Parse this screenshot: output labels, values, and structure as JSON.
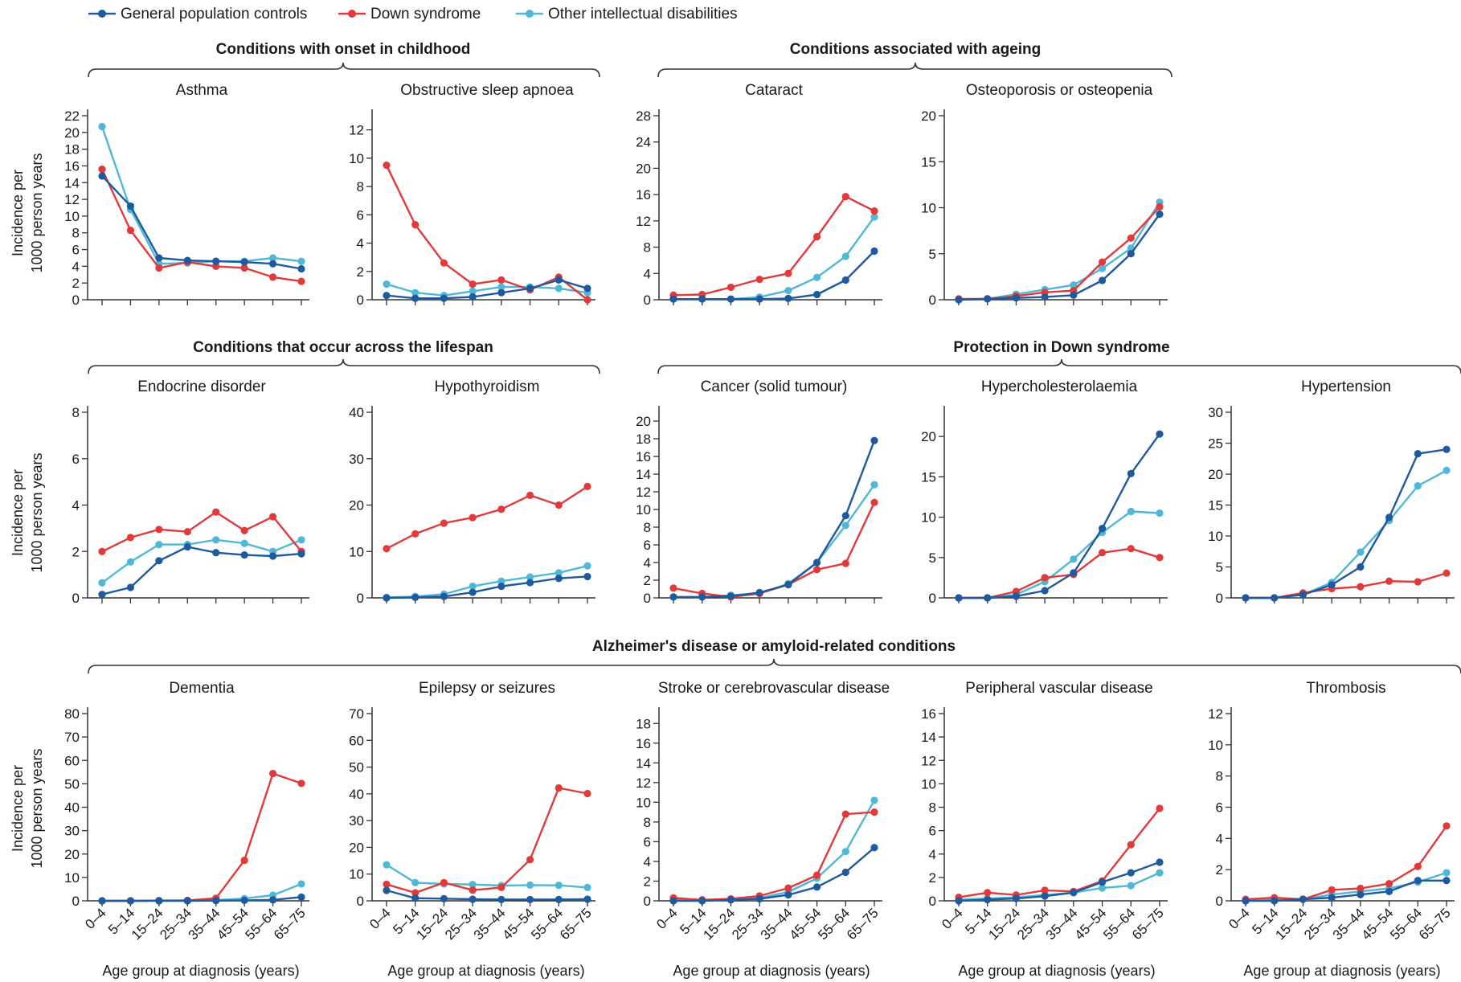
{
  "legend": [
    {
      "label": "General population controls",
      "color": "#1f5a9e"
    },
    {
      "label": "Down syndrome",
      "color": "#e2393a"
    },
    {
      "label": "Other intellectual disabilities",
      "color": "#4fb8d6"
    }
  ],
  "groups": [
    {
      "title": "Conditions with onset in childhood"
    },
    {
      "title": "Conditions associated with ageing"
    },
    {
      "title": "Conditions that occur across the lifespan"
    },
    {
      "title": "Protection in Down syndrome"
    },
    {
      "title": "Alzheimer's disease or amyloid-related conditions"
    }
  ],
  "ylabel_line1": "Incidence per",
  "ylabel_line2": "1000 person years",
  "xlabel": "Age group at diagnosis (years)",
  "chart_data": [
    {
      "type": "line",
      "title": "Asthma",
      "categories": [
        "0–4",
        "5–14",
        "15–24",
        "25–34",
        "35–44",
        "45–54",
        "55–64",
        "65–75"
      ],
      "ylim": [
        0,
        22
      ],
      "yticks": [
        0,
        2,
        4,
        6,
        8,
        10,
        12,
        14,
        16,
        18,
        20,
        22
      ],
      "series": [
        {
          "name": "General population controls",
          "values": [
            14.8,
            11.2,
            5.0,
            4.7,
            4.6,
            4.5,
            4.3,
            3.7
          ]
        },
        {
          "name": "Down syndrome",
          "values": [
            15.6,
            8.3,
            3.8,
            4.5,
            4.0,
            3.8,
            2.7,
            2.2
          ]
        },
        {
          "name": "Other intellectual disabilities",
          "values": [
            20.7,
            10.8,
            4.3,
            4.4,
            4.6,
            4.6,
            5.0,
            4.6
          ]
        }
      ]
    },
    {
      "type": "line",
      "title": "Obstructive sleep apnoea",
      "categories": [
        "0–4",
        "5–14",
        "15–24",
        "25–34",
        "35–44",
        "45–54",
        "55–64",
        "65–75"
      ],
      "ylim": [
        0,
        13
      ],
      "yticks": [
        0,
        2,
        4,
        6,
        8,
        10,
        12
      ],
      "series": [
        {
          "name": "General population controls",
          "values": [
            0.3,
            0.1,
            0.1,
            0.2,
            0.5,
            0.8,
            1.4,
            0.8
          ]
        },
        {
          "name": "Down syndrome",
          "values": [
            9.5,
            5.3,
            2.6,
            1.1,
            1.4,
            0.7,
            1.6,
            0.0
          ]
        },
        {
          "name": "Other intellectual disabilities",
          "values": [
            1.1,
            0.5,
            0.3,
            0.6,
            0.9,
            0.9,
            0.8,
            0.5
          ]
        }
      ]
    },
    {
      "type": "line",
      "title": "Cataract",
      "categories": [
        "0–4",
        "5–14",
        "15–24",
        "25–34",
        "35–44",
        "45–54",
        "55–64",
        "65–75"
      ],
      "ylim": [
        0,
        28
      ],
      "yticks": [
        0,
        4,
        8,
        12,
        16,
        20,
        24,
        28
      ],
      "series": [
        {
          "name": "General population controls",
          "values": [
            0.1,
            0.1,
            0.1,
            0.1,
            0.2,
            0.8,
            3.0,
            7.4
          ]
        },
        {
          "name": "Down syndrome",
          "values": [
            0.7,
            0.8,
            1.9,
            3.1,
            4.0,
            9.6,
            15.7,
            13.5
          ]
        },
        {
          "name": "Other intellectual disabilities",
          "values": [
            0.1,
            0.1,
            0.1,
            0.4,
            1.4,
            3.4,
            6.6,
            12.6
          ]
        }
      ]
    },
    {
      "type": "line",
      "title": "Osteoporosis or osteopenia",
      "categories": [
        "0–4",
        "5–14",
        "15–24",
        "25–34",
        "35–44",
        "45–54",
        "55–64",
        "65–75"
      ],
      "ylim": [
        0,
        20
      ],
      "yticks": [
        0,
        5,
        10,
        15,
        20
      ],
      "series": [
        {
          "name": "General population controls",
          "values": [
            0.0,
            0.1,
            0.2,
            0.3,
            0.5,
            2.1,
            5.0,
            9.3
          ]
        },
        {
          "name": "Down syndrome",
          "values": [
            0.1,
            0.1,
            0.4,
            0.8,
            1.0,
            4.1,
            6.7,
            10.1
          ]
        },
        {
          "name": "Other intellectual disabilities",
          "values": [
            0.0,
            0.1,
            0.6,
            1.1,
            1.6,
            3.4,
            5.6,
            10.6
          ]
        }
      ]
    },
    {
      "type": "line",
      "title": "Endocrine disorder",
      "categories": [
        "0–4",
        "5–14",
        "15–24",
        "25–34",
        "35–44",
        "45–54",
        "55–64",
        "65–75"
      ],
      "ylim": [
        0,
        8
      ],
      "yticks": [
        0,
        2,
        4,
        6,
        8
      ],
      "series": [
        {
          "name": "General population controls",
          "values": [
            0.15,
            0.45,
            1.6,
            2.2,
            1.95,
            1.85,
            1.8,
            1.9
          ]
        },
        {
          "name": "Down syndrome",
          "values": [
            2.0,
            2.6,
            2.95,
            2.85,
            3.7,
            2.9,
            3.5,
            2.0
          ]
        },
        {
          "name": "Other intellectual disabilities",
          "values": [
            0.65,
            1.55,
            2.3,
            2.3,
            2.5,
            2.35,
            2.0,
            2.5
          ]
        }
      ]
    },
    {
      "type": "line",
      "title": "Hypothyroidism",
      "categories": [
        "0–4",
        "5–14",
        "15–24",
        "25–34",
        "35–44",
        "45–54",
        "55–64",
        "65–75"
      ],
      "ylim": [
        0,
        40
      ],
      "yticks": [
        0,
        10,
        20,
        30,
        40
      ],
      "series": [
        {
          "name": "General population controls",
          "values": [
            0.0,
            0.1,
            0.3,
            1.2,
            2.5,
            3.3,
            4.2,
            4.6
          ]
        },
        {
          "name": "Down syndrome",
          "values": [
            10.6,
            13.8,
            16.1,
            17.3,
            19.1,
            22.1,
            20.0,
            24.0
          ]
        },
        {
          "name": "Other intellectual disabilities",
          "values": [
            0.1,
            0.3,
            0.8,
            2.5,
            3.6,
            4.5,
            5.4,
            6.9
          ]
        }
      ]
    },
    {
      "type": "line",
      "title": "Cancer (solid tumour)",
      "categories": [
        "0–4",
        "5–14",
        "15–24",
        "25–34",
        "35–44",
        "45–54",
        "55–64",
        "65–75"
      ],
      "ylim": [
        0,
        21
      ],
      "yticks": [
        0,
        2,
        4,
        6,
        8,
        10,
        12,
        14,
        16,
        18,
        20
      ],
      "series": [
        {
          "name": "General population controls",
          "values": [
            0.1,
            0.1,
            0.2,
            0.6,
            1.5,
            4.0,
            9.3,
            17.8
          ]
        },
        {
          "name": "Down syndrome",
          "values": [
            1.1,
            0.5,
            0.1,
            0.5,
            1.5,
            3.2,
            3.9,
            10.8
          ]
        },
        {
          "name": "Other intellectual disabilities",
          "values": [
            0.1,
            0.1,
            0.3,
            0.5,
            1.6,
            4.0,
            8.2,
            12.8
          ]
        }
      ]
    },
    {
      "type": "line",
      "title": "Hypercholesterolaemia",
      "categories": [
        "0–4",
        "5–14",
        "15–24",
        "25–34",
        "35–44",
        "45–54",
        "55–64",
        "65–75"
      ],
      "ylim": [
        0,
        23
      ],
      "yticks": [
        0,
        5,
        10,
        15,
        20
      ],
      "series": [
        {
          "name": "General population controls",
          "values": [
            0.0,
            0.0,
            0.2,
            0.9,
            3.1,
            8.6,
            15.4,
            20.3
          ]
        },
        {
          "name": "Down syndrome",
          "values": [
            0.0,
            0.0,
            0.8,
            2.5,
            2.9,
            5.6,
            6.1,
            5.0
          ]
        },
        {
          "name": "Other intellectual disabilities",
          "values": [
            0.0,
            0.0,
            0.4,
            2.0,
            4.8,
            8.1,
            10.7,
            10.5
          ]
        }
      ]
    },
    {
      "type": "line",
      "title": "Hypertension",
      "categories": [
        "0–4",
        "5–14",
        "15–24",
        "25–34",
        "35–44",
        "45–54",
        "55–64",
        "65–75"
      ],
      "ylim": [
        0,
        30
      ],
      "yticks": [
        0,
        5,
        10,
        15,
        20,
        25,
        30
      ],
      "series": [
        {
          "name": "General population controls",
          "values": [
            0.0,
            0.0,
            0.5,
            2.1,
            5.0,
            13.0,
            23.3,
            24.0
          ]
        },
        {
          "name": "Down syndrome",
          "values": [
            0.0,
            0.0,
            0.8,
            1.5,
            1.8,
            2.7,
            2.6,
            4.0
          ]
        },
        {
          "name": "Other intellectual disabilities",
          "values": [
            0.0,
            0.0,
            0.5,
            2.5,
            7.4,
            12.5,
            18.1,
            20.6
          ]
        }
      ]
    },
    {
      "type": "line",
      "title": "Dementia",
      "categories": [
        "0–4",
        "5–14",
        "15–24",
        "25–34",
        "35–44",
        "45–54",
        "55–64",
        "65–75"
      ],
      "ylim": [
        0,
        80
      ],
      "yticks": [
        0,
        10,
        20,
        30,
        40,
        50,
        60,
        70,
        80
      ],
      "series": [
        {
          "name": "General population controls",
          "values": [
            0.0,
            0.0,
            0.0,
            0.0,
            0.1,
            0.2,
            0.4,
            1.6
          ]
        },
        {
          "name": "Down syndrome",
          "values": [
            0.0,
            0.0,
            0.1,
            0.2,
            1.1,
            17.3,
            54.4,
            50.2
          ]
        },
        {
          "name": "Other intellectual disabilities",
          "values": [
            0.0,
            0.0,
            0.1,
            0.2,
            0.3,
            1.0,
            2.4,
            7.2
          ]
        }
      ]
    },
    {
      "type": "line",
      "title": "Epilepsy or seizures",
      "categories": [
        "0–4",
        "5–14",
        "15–24",
        "25–34",
        "35–44",
        "45–54",
        "55–64",
        "65–75"
      ],
      "ylim": [
        0,
        70
      ],
      "yticks": [
        0,
        10,
        20,
        30,
        40,
        50,
        60,
        70
      ],
      "series": [
        {
          "name": "General population controls",
          "values": [
            3.9,
            1.0,
            0.8,
            0.6,
            0.5,
            0.5,
            0.5,
            0.6
          ]
        },
        {
          "name": "Down syndrome",
          "values": [
            6.2,
            3.0,
            6.8,
            4.0,
            5.0,
            15.4,
            42.2,
            40.1
          ]
        },
        {
          "name": "Other intellectual disabilities",
          "values": [
            13.5,
            6.8,
            6.3,
            6.1,
            5.7,
            5.9,
            5.8,
            5.0
          ]
        }
      ]
    },
    {
      "type": "line",
      "title": "Stroke or cerebrovascular disease",
      "categories": [
        "0–4",
        "5–14",
        "15–24",
        "25–34",
        "35–44",
        "45–54",
        "55–64",
        "65–75"
      ],
      "ylim": [
        0,
        19
      ],
      "yticks": [
        0,
        2,
        4,
        6,
        8,
        10,
        12,
        14,
        16,
        18
      ],
      "series": [
        {
          "name": "General population controls",
          "values": [
            0.0,
            0.0,
            0.1,
            0.2,
            0.6,
            1.4,
            2.9,
            5.4
          ]
        },
        {
          "name": "Down syndrome",
          "values": [
            0.3,
            0.1,
            0.2,
            0.5,
            1.3,
            2.6,
            8.8,
            9.0
          ]
        },
        {
          "name": "Other intellectual disabilities",
          "values": [
            0.1,
            0.1,
            0.1,
            0.3,
            0.9,
            2.3,
            5.0,
            10.2
          ]
        }
      ]
    },
    {
      "type": "line",
      "title": "Peripheral vascular disease",
      "categories": [
        "0–4",
        "5–14",
        "15–24",
        "25–34",
        "35–44",
        "45–54",
        "55–64",
        "65–75"
      ],
      "ylim": [
        0,
        16
      ],
      "yticks": [
        0,
        2,
        4,
        6,
        8,
        10,
        12,
        14,
        16
      ],
      "series": [
        {
          "name": "General population controls",
          "values": [
            0.0,
            0.1,
            0.2,
            0.4,
            0.7,
            1.6,
            2.4,
            3.3
          ]
        },
        {
          "name": "Down syndrome",
          "values": [
            0.3,
            0.7,
            0.5,
            0.9,
            0.8,
            1.7,
            4.8,
            7.9
          ]
        },
        {
          "name": "Other intellectual disabilities",
          "values": [
            0.1,
            0.2,
            0.3,
            0.5,
            0.7,
            1.1,
            1.3,
            2.4
          ]
        }
      ]
    },
    {
      "type": "line",
      "title": "Thrombosis",
      "categories": [
        "0–4",
        "5–14",
        "15–24",
        "25–34",
        "35–44",
        "45–54",
        "55–64",
        "65–75"
      ],
      "ylim": [
        0,
        12
      ],
      "yticks": [
        0,
        2,
        4,
        6,
        8,
        10,
        12
      ],
      "series": [
        {
          "name": "General population controls",
          "values": [
            0.0,
            0.0,
            0.1,
            0.2,
            0.4,
            0.6,
            1.3,
            1.3
          ]
        },
        {
          "name": "Down syndrome",
          "values": [
            0.1,
            0.2,
            0.1,
            0.7,
            0.8,
            1.1,
            2.2,
            4.8
          ]
        },
        {
          "name": "Other intellectual disabilities",
          "values": [
            0.0,
            0.1,
            0.1,
            0.4,
            0.6,
            0.8,
            1.2,
            1.8
          ]
        }
      ]
    }
  ]
}
